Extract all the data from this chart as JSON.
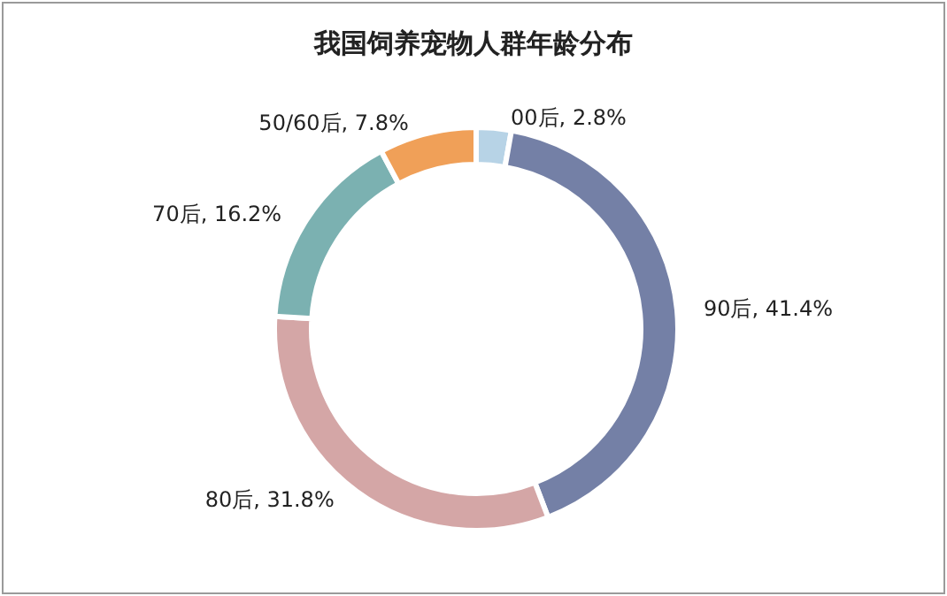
{
  "chart_data": {
    "type": "donut",
    "title": "我国饲养宠物人群年龄分布",
    "categories": [
      "00后",
      "90后",
      "80后",
      "70后",
      "50/60后"
    ],
    "values": [
      2.8,
      41.4,
      31.8,
      16.2,
      7.8
    ],
    "value_labels": [
      "2.8%",
      "41.4%",
      "31.8%",
      "16.2%",
      "7.8%"
    ],
    "colors": [
      "#b7d3e6",
      "#7480a6",
      "#d4a6a6",
      "#7bb1b1",
      "#f0a058"
    ],
    "legend": false
  }
}
